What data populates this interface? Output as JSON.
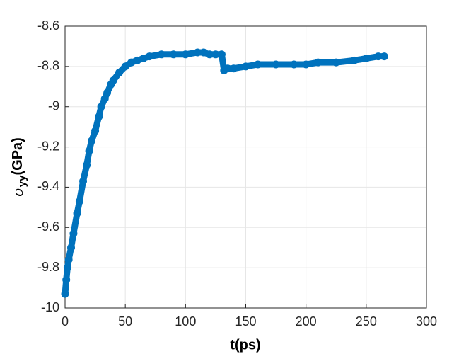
{
  "chart_data": {
    "type": "line",
    "marker": "o",
    "xlabel": "t(ps)",
    "ylabel": {
      "symbol": "σ",
      "subscript": "yy",
      "unit": "(GPa)"
    },
    "series": [
      {
        "color": "#0072bd",
        "x": [
          0,
          1,
          2,
          3,
          5,
          7,
          10,
          12,
          15,
          18,
          20,
          22,
          25,
          28,
          30,
          33,
          35,
          38,
          40,
          45,
          50,
          55,
          60,
          65,
          70,
          80,
          90,
          100,
          110,
          115,
          120,
          125,
          130,
          132,
          135,
          140,
          150,
          160,
          175,
          190,
          200,
          210,
          225,
          240,
          250,
          260,
          265
        ],
        "values": [
          -9.93,
          -9.86,
          -9.8,
          -9.76,
          -9.7,
          -9.63,
          -9.53,
          -9.47,
          -9.37,
          -9.29,
          -9.22,
          -9.17,
          -9.12,
          -9.05,
          -9.0,
          -8.96,
          -8.93,
          -8.89,
          -8.87,
          -8.83,
          -8.8,
          -8.78,
          -8.77,
          -8.76,
          -8.75,
          -8.74,
          -8.74,
          -8.74,
          -8.73,
          -8.73,
          -8.74,
          -8.74,
          -8.74,
          -8.82,
          -8.81,
          -8.81,
          -8.8,
          -8.79,
          -8.79,
          -8.79,
          -8.79,
          -8.78,
          -8.78,
          -8.77,
          -8.76,
          -8.75,
          -8.75
        ]
      }
    ],
    "xlim": [
      0,
      300
    ],
    "xticks": [
      0,
      50,
      100,
      150,
      200,
      250,
      300
    ],
    "ylim": [
      -10,
      -8.6
    ],
    "yticks": [
      -10,
      -9.8,
      -9.6,
      -9.4,
      -9.2,
      -9,
      -8.8,
      -8.6
    ],
    "grid": true
  }
}
